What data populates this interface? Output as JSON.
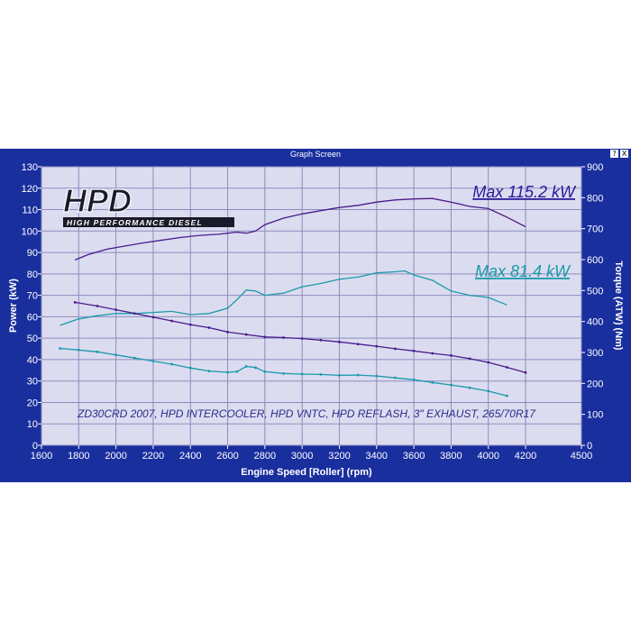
{
  "window": {
    "title": "Graph Screen",
    "help_glyph": "?",
    "close_glyph": "X"
  },
  "colors": {
    "frame": "#1a2f9e",
    "plot_bg": "#dcdcf0",
    "grid": "#8c8cbe",
    "power_color": "#4a1a8c",
    "torque_color": "#1a9aaa"
  },
  "logo": {
    "text": "HPD",
    "subtext": "HIGH PERFORMANCE DIESEL"
  },
  "annotations": {
    "max_power": "Max 115.2 kW",
    "max_torque": "Max 81.4 kW",
    "vehicle": "ZD30CRD 2007, HPD INTERCOOLER, HPD VNTC, HPD REFLASH, 3\" EXHAUST, 265/70R17"
  },
  "chart_data": {
    "type": "line",
    "xlabel": "Engine Speed [Roller] (rpm)",
    "ylabel": "Power (kW)",
    "y2label": "Torque (ATW) (Nm)",
    "xlim": [
      1600,
      4500
    ],
    "ylim": [
      0,
      130
    ],
    "y2lim": [
      0,
      900
    ],
    "xticks": [
      1600,
      1800,
      2000,
      2200,
      2400,
      2600,
      2800,
      3000,
      3200,
      3400,
      3600,
      3800,
      4000,
      4200,
      4500
    ],
    "yticks": [
      0,
      10,
      20,
      30,
      40,
      50,
      60,
      70,
      80,
      90,
      100,
      110,
      120,
      130
    ],
    "y2ticks": [
      0,
      100,
      200,
      300,
      400,
      500,
      600,
      700,
      800,
      900
    ],
    "grid": true,
    "series": [
      {
        "axis": "left",
        "color": "#4a1a8c",
        "markers": false,
        "x": [
          1780,
          1850,
          1950,
          2050,
          2150,
          2250,
          2350,
          2450,
          2550,
          2650,
          2700,
          2750,
          2800,
          2900,
          3000,
          3100,
          3200,
          3300,
          3400,
          3500,
          3600,
          3700,
          3800,
          3900,
          4000,
          4100,
          4200
        ],
        "y": [
          86.5,
          89,
          91.5,
          93,
          94.5,
          95.8,
          97,
          98,
          98.5,
          99.5,
          99,
          100,
          103,
          106,
          108,
          109.5,
          111,
          112,
          113.5,
          114.5,
          115,
          115.2,
          113.5,
          111.5,
          110.5,
          106.5,
          102
        ]
      },
      {
        "axis": "left",
        "color": "#1a9aaa",
        "markers": false,
        "x": [
          1700,
          1800,
          1900,
          2000,
          2100,
          2200,
          2300,
          2400,
          2500,
          2600,
          2650,
          2700,
          2750,
          2800,
          2900,
          3000,
          3100,
          3200,
          3300,
          3400,
          3500,
          3550,
          3600,
          3700,
          3800,
          3900,
          4000,
          4100
        ],
        "y": [
          56,
          59,
          60.5,
          61.5,
          61.5,
          62,
          62.5,
          61,
          61.5,
          64,
          68,
          72.5,
          72,
          70,
          71,
          74,
          75.5,
          77.5,
          78.5,
          80.5,
          81,
          81.4,
          79.5,
          77,
          72,
          70,
          69,
          65.5
        ]
      },
      {
        "axis": "right",
        "color": "#4a1a8c",
        "markers": true,
        "x": [
          1780,
          1900,
          2000,
          2100,
          2200,
          2300,
          2400,
          2500,
          2600,
          2700,
          2800,
          2900,
          3000,
          3100,
          3200,
          3300,
          3400,
          3500,
          3600,
          3700,
          3800,
          3900,
          4000,
          4100,
          4200
        ],
        "y": [
          462,
          450,
          438,
          426,
          414,
          402,
          390,
          380,
          366,
          358,
          350,
          348,
          345,
          340,
          334,
          327,
          320,
          312,
          305,
          297,
          290,
          280,
          268,
          252,
          235
        ]
      },
      {
        "axis": "right",
        "color": "#1a9aaa",
        "markers": true,
        "x": [
          1700,
          1800,
          1900,
          2000,
          2100,
          2200,
          2300,
          2400,
          2500,
          2600,
          2650,
          2700,
          2750,
          2800,
          2900,
          3000,
          3100,
          3200,
          3300,
          3400,
          3500,
          3600,
          3700,
          3800,
          3900,
          4000,
          4100
        ],
        "y": [
          313,
          308,
          302,
          292,
          282,
          272,
          262,
          250,
          240,
          236,
          238,
          255,
          251,
          238,
          232,
          230,
          229,
          226,
          227,
          224,
          218,
          212,
          203,
          195,
          186,
          175,
          160
        ]
      }
    ]
  }
}
